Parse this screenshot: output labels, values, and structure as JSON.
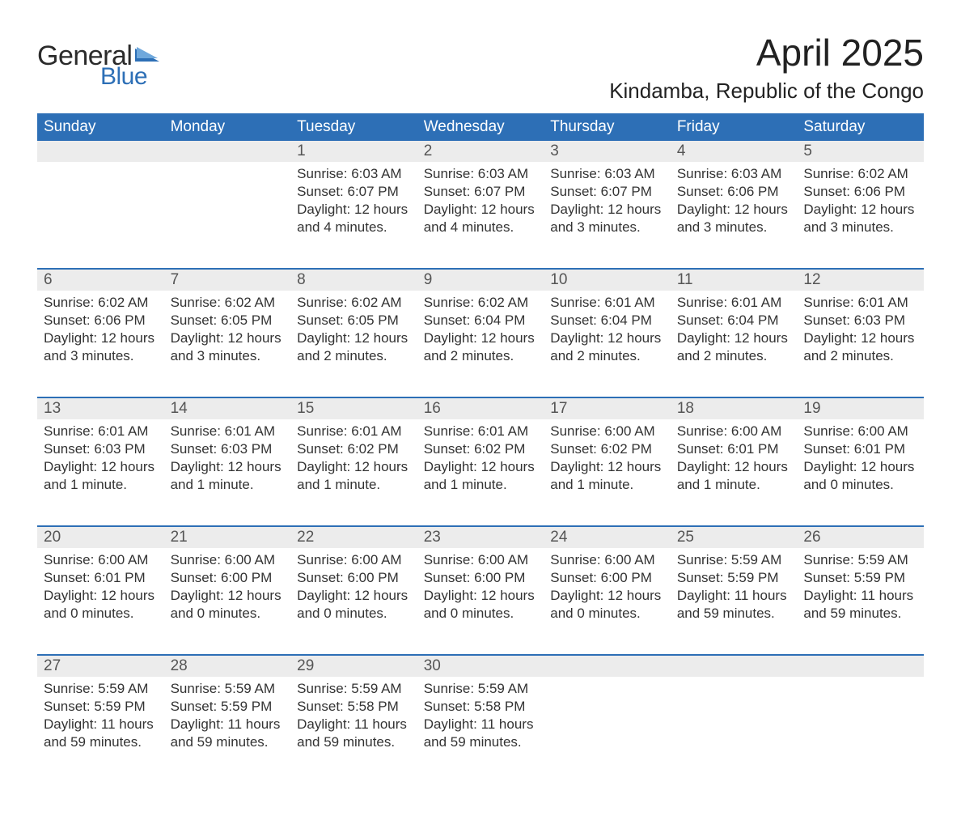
{
  "logo": {
    "part1": "General",
    "part2": "Blue",
    "text_color": "#2b2b2b",
    "blue_color": "#2d6fb6"
  },
  "title": "April 2025",
  "location": "Kindamba, Republic of the Congo",
  "colors": {
    "header_bg": "#2d6fb6",
    "header_text": "#ffffff",
    "daynum_bg": "#ececec",
    "daynum_text": "#555555",
    "body_text": "#333333",
    "rule": "#2d6fb6",
    "page_bg": "#ffffff"
  },
  "fonts": {
    "title_size_pt": 34,
    "location_size_pt": 20,
    "header_size_pt": 14,
    "body_size_pt": 13
  },
  "day_headers": [
    "Sunday",
    "Monday",
    "Tuesday",
    "Wednesday",
    "Thursday",
    "Friday",
    "Saturday"
  ],
  "labels": {
    "sunrise": "Sunrise: ",
    "sunset": "Sunset: ",
    "daylight": "Daylight: "
  },
  "weeks": [
    [
      null,
      null,
      {
        "n": "1",
        "sunrise": "6:03 AM",
        "sunset": "6:07 PM",
        "daylight": "12 hours and 4 minutes."
      },
      {
        "n": "2",
        "sunrise": "6:03 AM",
        "sunset": "6:07 PM",
        "daylight": "12 hours and 4 minutes."
      },
      {
        "n": "3",
        "sunrise": "6:03 AM",
        "sunset": "6:07 PM",
        "daylight": "12 hours and 3 minutes."
      },
      {
        "n": "4",
        "sunrise": "6:03 AM",
        "sunset": "6:06 PM",
        "daylight": "12 hours and 3 minutes."
      },
      {
        "n": "5",
        "sunrise": "6:02 AM",
        "sunset": "6:06 PM",
        "daylight": "12 hours and 3 minutes."
      }
    ],
    [
      {
        "n": "6",
        "sunrise": "6:02 AM",
        "sunset": "6:06 PM",
        "daylight": "12 hours and 3 minutes."
      },
      {
        "n": "7",
        "sunrise": "6:02 AM",
        "sunset": "6:05 PM",
        "daylight": "12 hours and 3 minutes."
      },
      {
        "n": "8",
        "sunrise": "6:02 AM",
        "sunset": "6:05 PM",
        "daylight": "12 hours and 2 minutes."
      },
      {
        "n": "9",
        "sunrise": "6:02 AM",
        "sunset": "6:04 PM",
        "daylight": "12 hours and 2 minutes."
      },
      {
        "n": "10",
        "sunrise": "6:01 AM",
        "sunset": "6:04 PM",
        "daylight": "12 hours and 2 minutes."
      },
      {
        "n": "11",
        "sunrise": "6:01 AM",
        "sunset": "6:04 PM",
        "daylight": "12 hours and 2 minutes."
      },
      {
        "n": "12",
        "sunrise": "6:01 AM",
        "sunset": "6:03 PM",
        "daylight": "12 hours and 2 minutes."
      }
    ],
    [
      {
        "n": "13",
        "sunrise": "6:01 AM",
        "sunset": "6:03 PM",
        "daylight": "12 hours and 1 minute."
      },
      {
        "n": "14",
        "sunrise": "6:01 AM",
        "sunset": "6:03 PM",
        "daylight": "12 hours and 1 minute."
      },
      {
        "n": "15",
        "sunrise": "6:01 AM",
        "sunset": "6:02 PM",
        "daylight": "12 hours and 1 minute."
      },
      {
        "n": "16",
        "sunrise": "6:01 AM",
        "sunset": "6:02 PM",
        "daylight": "12 hours and 1 minute."
      },
      {
        "n": "17",
        "sunrise": "6:00 AM",
        "sunset": "6:02 PM",
        "daylight": "12 hours and 1 minute."
      },
      {
        "n": "18",
        "sunrise": "6:00 AM",
        "sunset": "6:01 PM",
        "daylight": "12 hours and 1 minute."
      },
      {
        "n": "19",
        "sunrise": "6:00 AM",
        "sunset": "6:01 PM",
        "daylight": "12 hours and 0 minutes."
      }
    ],
    [
      {
        "n": "20",
        "sunrise": "6:00 AM",
        "sunset": "6:01 PM",
        "daylight": "12 hours and 0 minutes."
      },
      {
        "n": "21",
        "sunrise": "6:00 AM",
        "sunset": "6:00 PM",
        "daylight": "12 hours and 0 minutes."
      },
      {
        "n": "22",
        "sunrise": "6:00 AM",
        "sunset": "6:00 PM",
        "daylight": "12 hours and 0 minutes."
      },
      {
        "n": "23",
        "sunrise": "6:00 AM",
        "sunset": "6:00 PM",
        "daylight": "12 hours and 0 minutes."
      },
      {
        "n": "24",
        "sunrise": "6:00 AM",
        "sunset": "6:00 PM",
        "daylight": "12 hours and 0 minutes."
      },
      {
        "n": "25",
        "sunrise": "5:59 AM",
        "sunset": "5:59 PM",
        "daylight": "11 hours and 59 minutes."
      },
      {
        "n": "26",
        "sunrise": "5:59 AM",
        "sunset": "5:59 PM",
        "daylight": "11 hours and 59 minutes."
      }
    ],
    [
      {
        "n": "27",
        "sunrise": "5:59 AM",
        "sunset": "5:59 PM",
        "daylight": "11 hours and 59 minutes."
      },
      {
        "n": "28",
        "sunrise": "5:59 AM",
        "sunset": "5:59 PM",
        "daylight": "11 hours and 59 minutes."
      },
      {
        "n": "29",
        "sunrise": "5:59 AM",
        "sunset": "5:58 PM",
        "daylight": "11 hours and 59 minutes."
      },
      {
        "n": "30",
        "sunrise": "5:59 AM",
        "sunset": "5:58 PM",
        "daylight": "11 hours and 59 minutes."
      },
      null,
      null,
      null
    ]
  ]
}
